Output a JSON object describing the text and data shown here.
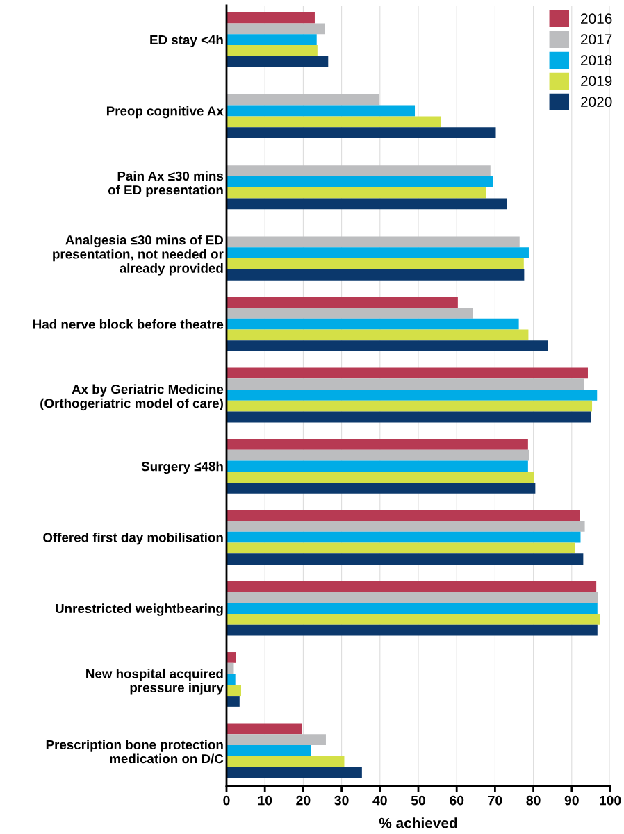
{
  "chart_data": {
    "type": "bar",
    "orientation": "horizontal",
    "xlabel": "% achieved",
    "categories": [
      "ED stay <4h",
      "Preop cognitive Ax",
      "Pain Ax ≤30 mins\nof ED presentation",
      "Analgesia ≤30 mins of ED\npresentation, not needed or\nalready provided",
      "Had nerve block before theatre",
      "Ax by Geriatric Medicine\n(Orthogeriatric model of care)",
      "Surgery ≤48h",
      "Offered first day mobilisation",
      "Unrestricted weightbearing",
      "New hospital acquired\npressure injury",
      "Prescription bone protection\nmedication on D/C"
    ],
    "series": [
      {
        "name": "2016",
        "color": "#b73a53",
        "values": [
          23.0,
          null,
          null,
          null,
          60.3,
          94.2,
          78.6,
          92.1,
          96.4,
          2.4,
          19.7
        ]
      },
      {
        "name": "2017",
        "color": "#bcbdbf",
        "values": [
          25.7,
          39.7,
          68.8,
          76.4,
          64.2,
          93.2,
          78.9,
          93.4,
          96.8,
          1.9,
          25.9
        ]
      },
      {
        "name": "2018",
        "color": "#00ace6",
        "values": [
          23.5,
          49.1,
          69.5,
          78.8,
          76.2,
          96.6,
          78.6,
          92.3,
          96.7,
          2.3,
          22.1
        ]
      },
      {
        "name": "2019",
        "color": "#d4e047",
        "values": [
          23.7,
          55.8,
          67.6,
          77.5,
          78.7,
          95.3,
          80.1,
          90.8,
          97.4,
          3.8,
          30.7
        ]
      },
      {
        "name": "2020",
        "color": "#0b386c",
        "values": [
          26.5,
          70.2,
          73.1,
          77.6,
          83.8,
          95.0,
          80.5,
          93.0,
          96.7,
          3.4,
          35.3
        ]
      }
    ],
    "xlim": [
      0,
      100
    ],
    "xticks": [
      0,
      10,
      20,
      30,
      40,
      50,
      60,
      70,
      80,
      90,
      100
    ],
    "grid": "x",
    "legend": "top right"
  }
}
